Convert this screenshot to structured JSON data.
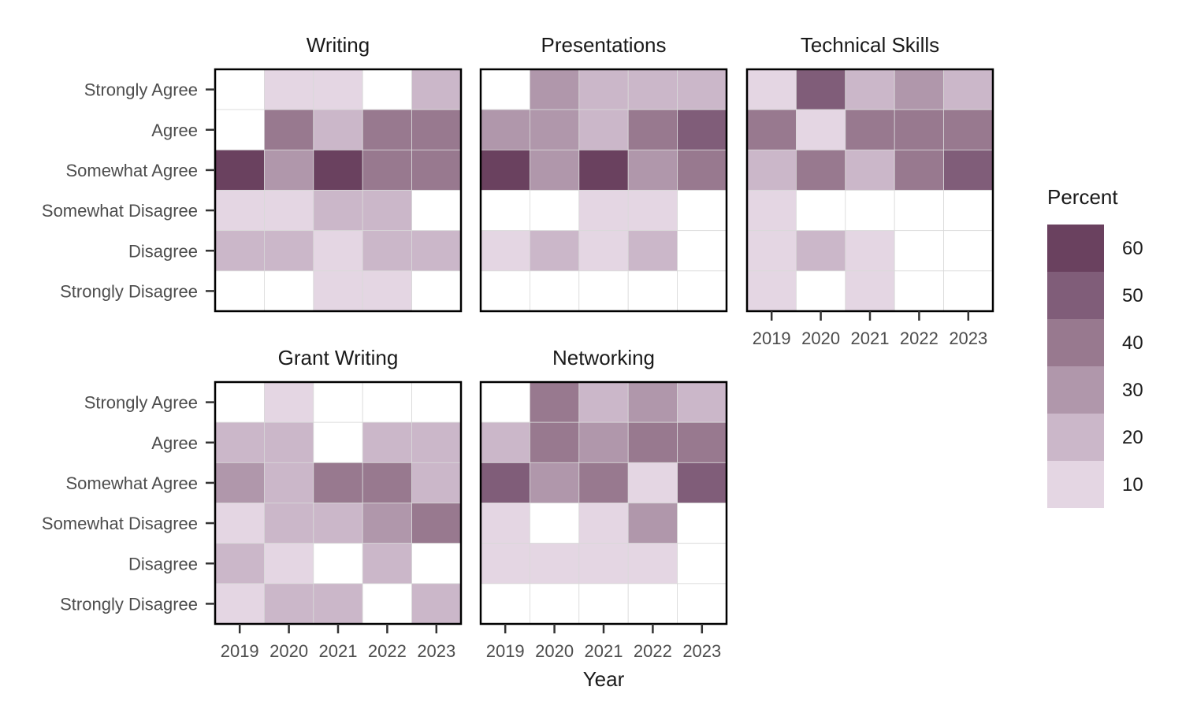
{
  "chart_data": {
    "type": "heatmap",
    "x_title": "Year",
    "years": [
      "2019",
      "2020",
      "2021",
      "2022",
      "2023"
    ],
    "responses": [
      "Strongly Agree",
      "Agree",
      "Somewhat Agree",
      "Somewhat Disagree",
      "Disagree",
      "Strongly Disagree"
    ],
    "legend": {
      "title": "Percent",
      "ticks": [
        60,
        50,
        40,
        30,
        20,
        10
      ],
      "bins": [
        {
          "range": [
            55,
            65
          ],
          "color": "#6a415f"
        },
        {
          "range": [
            45,
            55
          ],
          "color": "#805d79"
        },
        {
          "range": [
            35,
            45
          ],
          "color": "#98798f"
        },
        {
          "range": [
            25,
            35
          ],
          "color": "#b097ab"
        },
        {
          "range": [
            15,
            25
          ],
          "color": "#cbb7c9"
        },
        {
          "range": [
            5,
            15
          ],
          "color": "#e4d6e3"
        }
      ]
    },
    "facets": [
      {
        "title": "Writing",
        "values": [
          [
            0,
            10,
            10,
            0,
            20
          ],
          [
            0,
            40,
            20,
            40,
            40
          ],
          [
            60,
            30,
            60,
            40,
            40
          ],
          [
            10,
            10,
            20,
            20,
            0
          ],
          [
            20,
            20,
            10,
            20,
            20
          ],
          [
            0,
            0,
            10,
            10,
            0
          ]
        ]
      },
      {
        "title": "Presentations",
        "values": [
          [
            0,
            30,
            20,
            20,
            20
          ],
          [
            30,
            30,
            20,
            40,
            50
          ],
          [
            60,
            30,
            60,
            30,
            40
          ],
          [
            0,
            0,
            10,
            10,
            0
          ],
          [
            10,
            20,
            10,
            20,
            0
          ],
          [
            0,
            0,
            0,
            0,
            0
          ]
        ]
      },
      {
        "title": "Technical Skills",
        "values": [
          [
            10,
            50,
            20,
            30,
            20
          ],
          [
            40,
            10,
            40,
            40,
            40
          ],
          [
            20,
            40,
            20,
            40,
            50
          ],
          [
            10,
            0,
            0,
            0,
            0
          ],
          [
            10,
            20,
            10,
            0,
            0
          ],
          [
            10,
            0,
            10,
            0,
            0
          ]
        ]
      },
      {
        "title": "Grant Writing",
        "values": [
          [
            0,
            10,
            0,
            0,
            0
          ],
          [
            20,
            20,
            0,
            20,
            20
          ],
          [
            30,
            20,
            40,
            40,
            20
          ],
          [
            10,
            20,
            20,
            30,
            40
          ],
          [
            20,
            10,
            0,
            20,
            0
          ],
          [
            10,
            20,
            20,
            0,
            20
          ]
        ]
      },
      {
        "title": "Networking",
        "values": [
          [
            0,
            40,
            20,
            30,
            20
          ],
          [
            20,
            40,
            30,
            40,
            40
          ],
          [
            50,
            30,
            40,
            10,
            50
          ],
          [
            10,
            0,
            10,
            30,
            0
          ],
          [
            10,
            10,
            10,
            10,
            0
          ],
          [
            0,
            0,
            0,
            0,
            0
          ]
        ]
      }
    ]
  }
}
